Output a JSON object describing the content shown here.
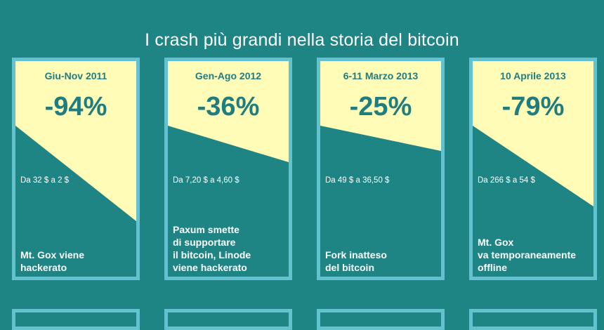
{
  "header": {
    "title": "I crash più grandi nella storia del bitcoin"
  },
  "colors": {
    "background": "#1f8484",
    "card_border": "#64c2cf",
    "highlight": "#fffcb8",
    "accent_text": "#1f7d80"
  },
  "cards": [
    {
      "period": "Giu-Nov 2011",
      "change": "-94%",
      "change_fraction": 0.94,
      "range": "Da 32 $ a 2 $",
      "event": "Mt. Gox viene\nhackerato"
    },
    {
      "period": "Gen-Ago 2012",
      "change": "-36%",
      "change_fraction": 0.36,
      "range": "Da 7,20 $ a 4,60 $",
      "event": "Paxum smette\ndi supportare\nil bitcoin, Linode\nviene hackerato"
    },
    {
      "period": "6-11 Marzo 2013",
      "change": "-25%",
      "change_fraction": 0.25,
      "range": "Da 49 $ a 36,50 $",
      "event": "Fork inatteso\ndel bitcoin"
    },
    {
      "period": "10 Aprile 2013",
      "change": "-79%",
      "change_fraction": 0.79,
      "range": "Da 266 $ a 54 $",
      "event": "Mt. Gox\nva temporaneamente\noffline"
    }
  ]
}
